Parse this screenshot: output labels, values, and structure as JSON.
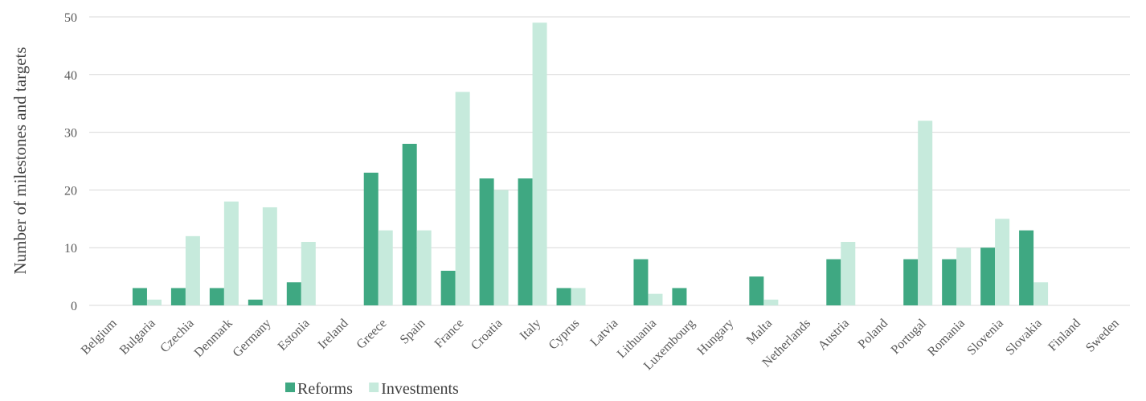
{
  "chart_data": {
    "type": "bar",
    "title": "",
    "xlabel": "",
    "ylabel": "Number of milestones and targets",
    "ylim": [
      0,
      50
    ],
    "yticks": [
      0,
      10,
      20,
      30,
      40,
      50
    ],
    "grid": true,
    "legend_position": "bottom",
    "categories": [
      "Belgium",
      "Bulgaria",
      "Czechia",
      "Denmark",
      "Germany",
      "Estonia",
      "Ireland",
      "Greece",
      "Spain",
      "France",
      "Croatia",
      "Italy",
      "Cyprus",
      "Latvia",
      "Lithuania",
      "Luxembourg",
      "Hungary",
      "Malta",
      "Netherlands",
      "Austria",
      "Poland",
      "Portugal",
      "Romania",
      "Slovenia",
      "Slovakia",
      "Finland",
      "Sweden"
    ],
    "series": [
      {
        "name": "Reforms",
        "color": "#3fa882",
        "values": [
          0,
          3,
          3,
          3,
          1,
          4,
          0,
          23,
          28,
          6,
          22,
          22,
          3,
          0,
          8,
          3,
          0,
          5,
          0,
          8,
          0,
          8,
          8,
          10,
          13,
          0,
          0
        ]
      },
      {
        "name": "Investments",
        "color": "#c6eadc",
        "values": [
          0,
          1,
          12,
          18,
          17,
          11,
          0,
          13,
          13,
          37,
          20,
          49,
          3,
          0,
          2,
          0,
          0,
          1,
          0,
          11,
          0,
          32,
          10,
          15,
          4,
          0,
          0
        ]
      }
    ]
  }
}
